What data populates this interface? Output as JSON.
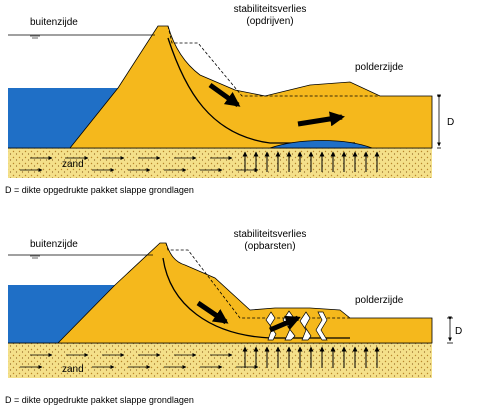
{
  "panels": [
    {
      "id": "opdrijven",
      "outside_label": "buitenzijde",
      "title_line1": "stabiliteitsverlies",
      "title_line2": "(opdrijven)",
      "polder_label": "polderzijde",
      "sand_label": "zand",
      "thickness_label": "D",
      "caption": "D =  dikte opgedrukte pakket slappe grondlagen"
    },
    {
      "id": "opbarsten",
      "outside_label": "buitenzijde",
      "title_line1": "stabiliteitsverlies",
      "title_line2": "(opbarsten)",
      "polder_label": "polderzijde",
      "sand_label": "zand",
      "thickness_label": "D",
      "caption": "D =  dikte opgedrukte pakket slappe grondlagen"
    }
  ],
  "colors": {
    "dike": "#f5b81c",
    "water": "#1f6fc6",
    "sand": "#f4e08a",
    "sand_dots": "#b8862a",
    "outline": "#000000"
  }
}
